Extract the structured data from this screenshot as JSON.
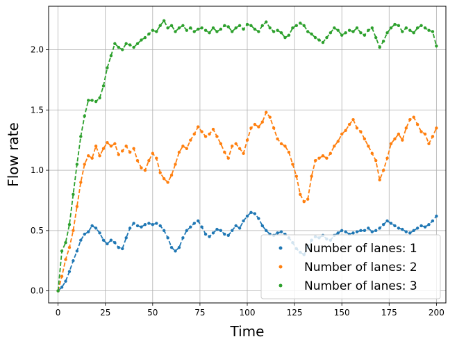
{
  "chart_data": {
    "type": "line",
    "title": "",
    "xlabel": "Time",
    "ylabel": "Flow rate",
    "xlim": [
      -5,
      205
    ],
    "ylim": [
      -0.1,
      2.36
    ],
    "xticks": [
      0,
      25,
      50,
      75,
      100,
      125,
      150,
      175,
      200
    ],
    "yticks": [
      0.0,
      0.5,
      1.0,
      1.5,
      2.0
    ],
    "xtick_labels": [
      "0",
      "25",
      "50",
      "75",
      "100",
      "125",
      "150",
      "175",
      "200"
    ],
    "ytick_labels": [
      "0.0",
      "0.5",
      "1.0",
      "1.5",
      "2.0"
    ],
    "grid": true,
    "legend_position": "bottom-right",
    "line_style": "dashed with dot markers",
    "series": [
      {
        "name": "Number of lanes: 1",
        "color": "#1f77b4",
        "x": [
          0,
          2,
          4,
          6,
          8,
          10,
          12,
          14,
          16,
          18,
          20,
          22,
          24,
          26,
          28,
          30,
          32,
          34,
          36,
          38,
          40,
          42,
          44,
          46,
          48,
          50,
          52,
          54,
          56,
          58,
          60,
          62,
          64,
          66,
          68,
          70,
          72,
          74,
          76,
          78,
          80,
          82,
          84,
          86,
          88,
          90,
          92,
          94,
          96,
          98,
          100,
          102,
          104,
          106,
          108,
          110,
          112,
          114,
          116,
          118,
          120,
          122,
          124,
          126,
          128,
          130,
          132,
          134,
          136,
          138,
          140,
          142,
          144,
          146,
          148,
          150,
          152,
          154,
          156,
          158,
          160,
          162,
          164,
          166,
          168,
          170,
          172,
          174,
          176,
          178,
          180,
          182,
          184,
          186,
          188,
          190,
          192,
          194,
          196,
          198,
          200
        ],
        "values": [
          0.0,
          0.03,
          0.08,
          0.16,
          0.25,
          0.33,
          0.42,
          0.47,
          0.49,
          0.54,
          0.52,
          0.48,
          0.42,
          0.39,
          0.42,
          0.4,
          0.36,
          0.35,
          0.44,
          0.52,
          0.56,
          0.54,
          0.53,
          0.55,
          0.56,
          0.55,
          0.56,
          0.54,
          0.5,
          0.44,
          0.36,
          0.33,
          0.36,
          0.44,
          0.5,
          0.53,
          0.56,
          0.58,
          0.53,
          0.47,
          0.45,
          0.48,
          0.51,
          0.5,
          0.47,
          0.46,
          0.5,
          0.54,
          0.52,
          0.58,
          0.62,
          0.65,
          0.64,
          0.6,
          0.54,
          0.5,
          0.47,
          0.46,
          0.48,
          0.49,
          0.47,
          0.44,
          0.4,
          0.35,
          0.32,
          0.3,
          0.36,
          0.42,
          0.45,
          0.44,
          0.46,
          0.43,
          0.42,
          0.46,
          0.48,
          0.5,
          0.49,
          0.47,
          0.48,
          0.49,
          0.5,
          0.5,
          0.52,
          0.49,
          0.5,
          0.52,
          0.55,
          0.58,
          0.56,
          0.54,
          0.52,
          0.51,
          0.49,
          0.48,
          0.5,
          0.52,
          0.54,
          0.53,
          0.55,
          0.58,
          0.62
        ]
      },
      {
        "name": "Number of lanes: 2",
        "color": "#ff7f0e",
        "x": [
          0,
          2,
          4,
          6,
          8,
          10,
          12,
          14,
          16,
          18,
          20,
          22,
          24,
          26,
          28,
          30,
          32,
          34,
          36,
          38,
          40,
          42,
          44,
          46,
          48,
          50,
          52,
          54,
          56,
          58,
          60,
          62,
          64,
          66,
          68,
          70,
          72,
          74,
          76,
          78,
          80,
          82,
          84,
          86,
          88,
          90,
          92,
          94,
          96,
          98,
          100,
          102,
          104,
          106,
          108,
          110,
          112,
          114,
          116,
          118,
          120,
          122,
          124,
          126,
          128,
          130,
          132,
          134,
          136,
          138,
          140,
          142,
          144,
          146,
          148,
          150,
          152,
          154,
          156,
          158,
          160,
          162,
          164,
          166,
          168,
          170,
          172,
          174,
          176,
          178,
          180,
          182,
          184,
          186,
          188,
          190,
          192,
          194,
          196,
          198,
          200
        ],
        "values": [
          0.0,
          0.12,
          0.26,
          0.36,
          0.5,
          0.7,
          0.9,
          1.05,
          1.12,
          1.1,
          1.2,
          1.12,
          1.18,
          1.23,
          1.2,
          1.22,
          1.13,
          1.16,
          1.2,
          1.15,
          1.18,
          1.08,
          1.02,
          1.0,
          1.08,
          1.14,
          1.1,
          0.98,
          0.93,
          0.9,
          0.96,
          1.05,
          1.15,
          1.2,
          1.18,
          1.25,
          1.3,
          1.36,
          1.32,
          1.28,
          1.3,
          1.34,
          1.28,
          1.22,
          1.15,
          1.1,
          1.2,
          1.22,
          1.18,
          1.14,
          1.25,
          1.35,
          1.38,
          1.36,
          1.4,
          1.48,
          1.44,
          1.35,
          1.26,
          1.22,
          1.2,
          1.15,
          1.05,
          0.95,
          0.8,
          0.74,
          0.76,
          0.95,
          1.08,
          1.1,
          1.12,
          1.1,
          1.14,
          1.2,
          1.24,
          1.3,
          1.33,
          1.38,
          1.42,
          1.35,
          1.32,
          1.26,
          1.2,
          1.14,
          1.08,
          0.92,
          1.0,
          1.1,
          1.22,
          1.26,
          1.3,
          1.25,
          1.35,
          1.42,
          1.44,
          1.38,
          1.32,
          1.3,
          1.22,
          1.28,
          1.35
        ]
      },
      {
        "name": "Number of lanes: 3",
        "color": "#2ca02c",
        "x": [
          0,
          2,
          4,
          6,
          8,
          10,
          12,
          14,
          16,
          18,
          20,
          22,
          24,
          26,
          28,
          30,
          32,
          34,
          36,
          38,
          40,
          42,
          44,
          46,
          48,
          50,
          52,
          54,
          56,
          58,
          60,
          62,
          64,
          66,
          68,
          70,
          72,
          74,
          76,
          78,
          80,
          82,
          84,
          86,
          88,
          90,
          92,
          94,
          96,
          98,
          100,
          102,
          104,
          106,
          108,
          110,
          112,
          114,
          116,
          118,
          120,
          122,
          124,
          126,
          128,
          130,
          132,
          134,
          136,
          138,
          140,
          142,
          144,
          146,
          148,
          150,
          152,
          154,
          156,
          158,
          160,
          162,
          164,
          166,
          168,
          170,
          172,
          174,
          176,
          178,
          180,
          182,
          184,
          186,
          188,
          190,
          192,
          194,
          196,
          198,
          200
        ],
        "values": [
          0.0,
          0.33,
          0.4,
          0.55,
          0.8,
          1.05,
          1.28,
          1.45,
          1.58,
          1.58,
          1.57,
          1.6,
          1.7,
          1.85,
          1.95,
          2.05,
          2.02,
          2.0,
          2.05,
          2.04,
          2.02,
          2.05,
          2.08,
          2.1,
          2.13,
          2.16,
          2.15,
          2.2,
          2.24,
          2.18,
          2.2,
          2.15,
          2.18,
          2.2,
          2.16,
          2.18,
          2.15,
          2.17,
          2.18,
          2.16,
          2.14,
          2.18,
          2.15,
          2.17,
          2.2,
          2.19,
          2.15,
          2.18,
          2.2,
          2.17,
          2.21,
          2.2,
          2.17,
          2.15,
          2.2,
          2.23,
          2.18,
          2.15,
          2.16,
          2.14,
          2.1,
          2.12,
          2.18,
          2.2,
          2.22,
          2.2,
          2.15,
          2.13,
          2.1,
          2.08,
          2.06,
          2.1,
          2.14,
          2.18,
          2.16,
          2.12,
          2.14,
          2.16,
          2.15,
          2.18,
          2.14,
          2.12,
          2.16,
          2.18,
          2.1,
          2.02,
          2.07,
          2.14,
          2.18,
          2.21,
          2.2,
          2.15,
          2.18,
          2.16,
          2.14,
          2.18,
          2.2,
          2.18,
          2.16,
          2.15,
          2.03
        ]
      }
    ]
  }
}
